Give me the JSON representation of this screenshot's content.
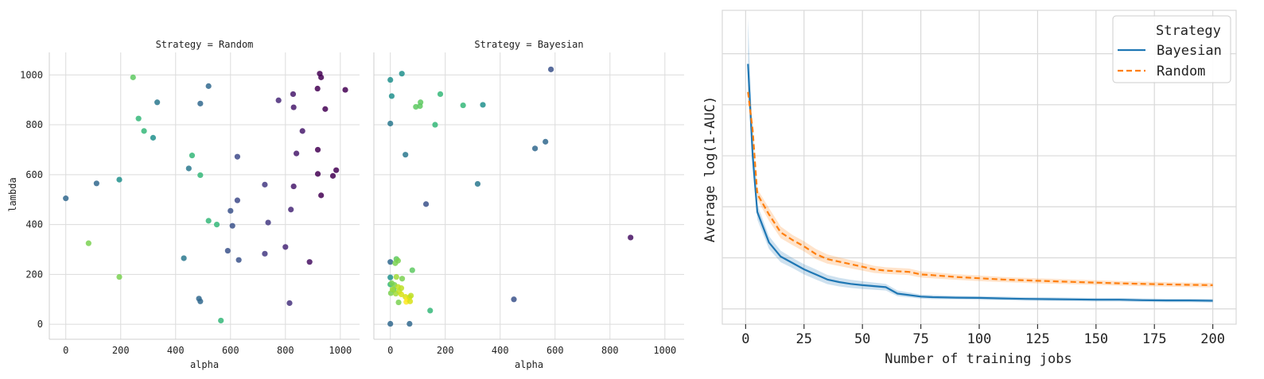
{
  "chart_data": [
    {
      "type": "scatter",
      "title": "Strategy = Random",
      "xlabel": "alpha",
      "ylabel": "lambda",
      "xlim": [
        -60,
        1070
      ],
      "ylim": [
        -60,
        1090
      ],
      "xticks": [
        "0",
        "200",
        "400",
        "600",
        "800",
        "1000"
      ],
      "yticks": [
        "0",
        "200",
        "400",
        "600",
        "800",
        "1000"
      ],
      "colormap": "viridis",
      "points": [
        {
          "x": 0,
          "y": 505,
          "color": "#31688e"
        },
        {
          "x": 112,
          "y": 565,
          "color": "#31688e"
        },
        {
          "x": 195,
          "y": 580,
          "color": "#21908d"
        },
        {
          "x": 83,
          "y": 325,
          "color": "#7ad151"
        },
        {
          "x": 195,
          "y": 190,
          "color": "#7ad151"
        },
        {
          "x": 245,
          "y": 990,
          "color": "#5ec962"
        },
        {
          "x": 265,
          "y": 825,
          "color": "#35b779"
        },
        {
          "x": 285,
          "y": 775,
          "color": "#35b779"
        },
        {
          "x": 318,
          "y": 748,
          "color": "#21908d"
        },
        {
          "x": 333,
          "y": 890,
          "color": "#2a788e"
        },
        {
          "x": 460,
          "y": 677,
          "color": "#35b779"
        },
        {
          "x": 448,
          "y": 625,
          "color": "#2a788e"
        },
        {
          "x": 490,
          "y": 598,
          "color": "#35b779"
        },
        {
          "x": 490,
          "y": 885,
          "color": "#31688e"
        },
        {
          "x": 520,
          "y": 955,
          "color": "#31688e"
        },
        {
          "x": 520,
          "y": 415,
          "color": "#35b779"
        },
        {
          "x": 550,
          "y": 400,
          "color": "#35b779"
        },
        {
          "x": 430,
          "y": 265,
          "color": "#2a788e"
        },
        {
          "x": 485,
          "y": 103,
          "color": "#31688e"
        },
        {
          "x": 490,
          "y": 92,
          "color": "#31688e"
        },
        {
          "x": 565,
          "y": 15,
          "color": "#35b779"
        },
        {
          "x": 590,
          "y": 295,
          "color": "#3b528b"
        },
        {
          "x": 600,
          "y": 455,
          "color": "#3b528b"
        },
        {
          "x": 607,
          "y": 395,
          "color": "#3b528b"
        },
        {
          "x": 625,
          "y": 672,
          "color": "#3e4a89"
        },
        {
          "x": 625,
          "y": 497,
          "color": "#3e4a89"
        },
        {
          "x": 630,
          "y": 258,
          "color": "#3b528b"
        },
        {
          "x": 725,
          "y": 560,
          "color": "#443983"
        },
        {
          "x": 725,
          "y": 283,
          "color": "#443983"
        },
        {
          "x": 737,
          "y": 408,
          "color": "#443983"
        },
        {
          "x": 775,
          "y": 898,
          "color": "#482878"
        },
        {
          "x": 800,
          "y": 310,
          "color": "#482878"
        },
        {
          "x": 815,
          "y": 85,
          "color": "#46327e"
        },
        {
          "x": 820,
          "y": 460,
          "color": "#482878"
        },
        {
          "x": 828,
          "y": 923,
          "color": "#481a6c"
        },
        {
          "x": 830,
          "y": 870,
          "color": "#481a6c"
        },
        {
          "x": 830,
          "y": 553,
          "color": "#481a6c"
        },
        {
          "x": 840,
          "y": 685,
          "color": "#481a6c"
        },
        {
          "x": 862,
          "y": 775,
          "color": "#481a6c"
        },
        {
          "x": 888,
          "y": 250,
          "color": "#471063"
        },
        {
          "x": 917,
          "y": 945,
          "color": "#440154"
        },
        {
          "x": 925,
          "y": 1005,
          "color": "#440154"
        },
        {
          "x": 930,
          "y": 990,
          "color": "#440154"
        },
        {
          "x": 918,
          "y": 700,
          "color": "#440154"
        },
        {
          "x": 918,
          "y": 603,
          "color": "#440154"
        },
        {
          "x": 930,
          "y": 517,
          "color": "#440154"
        },
        {
          "x": 945,
          "y": 863,
          "color": "#440154"
        },
        {
          "x": 973,
          "y": 595,
          "color": "#440154"
        },
        {
          "x": 985,
          "y": 618,
          "color": "#440154"
        },
        {
          "x": 1018,
          "y": 940,
          "color": "#440154"
        }
      ]
    },
    {
      "type": "scatter",
      "title": "Strategy = Bayesian",
      "xlabel": "alpha",
      "ylabel": "",
      "xlim": [
        -60,
        1070
      ],
      "ylim": [
        -60,
        1090
      ],
      "xticks": [
        "0",
        "200",
        "400",
        "600",
        "800",
        "1000"
      ],
      "colormap": "viridis",
      "points": [
        {
          "x": 0,
          "y": 980,
          "color": "#21908d"
        },
        {
          "x": 42,
          "y": 1005,
          "color": "#21908d"
        },
        {
          "x": 5,
          "y": 915,
          "color": "#21908d"
        },
        {
          "x": 0,
          "y": 805,
          "color": "#2a788e"
        },
        {
          "x": 55,
          "y": 680,
          "color": "#2a788e"
        },
        {
          "x": 93,
          "y": 872,
          "color": "#5ec962"
        },
        {
          "x": 108,
          "y": 875,
          "color": "#5ec962"
        },
        {
          "x": 110,
          "y": 890,
          "color": "#5ec962"
        },
        {
          "x": 163,
          "y": 800,
          "color": "#35b779"
        },
        {
          "x": 182,
          "y": 923,
          "color": "#35b779"
        },
        {
          "x": 265,
          "y": 878,
          "color": "#35b779"
        },
        {
          "x": 337,
          "y": 880,
          "color": "#21908d"
        },
        {
          "x": 318,
          "y": 563,
          "color": "#2a788e"
        },
        {
          "x": 527,
          "y": 705,
          "color": "#31688e"
        },
        {
          "x": 565,
          "y": 732,
          "color": "#31688e"
        },
        {
          "x": 585,
          "y": 1022,
          "color": "#3b528b"
        },
        {
          "x": 130,
          "y": 482,
          "color": "#3b528b"
        },
        {
          "x": 875,
          "y": 348,
          "color": "#471063"
        },
        {
          "x": 450,
          "y": 100,
          "color": "#3b528b"
        },
        {
          "x": 145,
          "y": 55,
          "color": "#35b779"
        },
        {
          "x": 70,
          "y": 2,
          "color": "#31688e"
        },
        {
          "x": 0,
          "y": 2,
          "color": "#31688e"
        },
        {
          "x": 0,
          "y": 250,
          "color": "#31688e"
        },
        {
          "x": 22,
          "y": 262,
          "color": "#5ec962"
        },
        {
          "x": 28,
          "y": 255,
          "color": "#7ad151"
        },
        {
          "x": 18,
          "y": 245,
          "color": "#7ad151"
        },
        {
          "x": 0,
          "y": 188,
          "color": "#21908d"
        },
        {
          "x": 22,
          "y": 190,
          "color": "#a0da39"
        },
        {
          "x": 43,
          "y": 183,
          "color": "#7ad151"
        },
        {
          "x": 80,
          "y": 217,
          "color": "#5ec962"
        },
        {
          "x": 0,
          "y": 160,
          "color": "#35b779"
        },
        {
          "x": 5,
          "y": 165,
          "color": "#7ad151"
        },
        {
          "x": 15,
          "y": 158,
          "color": "#7ad151"
        },
        {
          "x": 28,
          "y": 150,
          "color": "#bddf26"
        },
        {
          "x": 40,
          "y": 145,
          "color": "#bddf26"
        },
        {
          "x": 2,
          "y": 125,
          "color": "#7ad151"
        },
        {
          "x": 12,
          "y": 138,
          "color": "#5ec962"
        },
        {
          "x": 20,
          "y": 123,
          "color": "#a0da39"
        },
        {
          "x": 32,
          "y": 132,
          "color": "#bddf26"
        },
        {
          "x": 55,
          "y": 110,
          "color": "#d8e219"
        },
        {
          "x": 62,
          "y": 100,
          "color": "#fde725"
        },
        {
          "x": 70,
          "y": 108,
          "color": "#d8e219"
        },
        {
          "x": 75,
          "y": 115,
          "color": "#bddf26"
        },
        {
          "x": 58,
          "y": 90,
          "color": "#fde725"
        },
        {
          "x": 30,
          "y": 88,
          "color": "#7ad151"
        },
        {
          "x": 72,
          "y": 92,
          "color": "#d8e219"
        },
        {
          "x": 40,
          "y": 120,
          "color": "#d8e219"
        },
        {
          "x": 8,
          "y": 140,
          "color": "#a0da39"
        }
      ]
    },
    {
      "type": "line",
      "title": "",
      "xlabel": "Number of training jobs",
      "ylabel": "Average log(1-AUC)",
      "xlim": [
        -10,
        210
      ],
      "ylim": [
        -0.06,
        1.17
      ],
      "xticks": [
        0,
        25,
        50,
        75,
        100,
        125,
        150,
        175,
        200
      ],
      "ygrid": [
        1.0,
        0.8,
        0.6,
        0.4,
        0.2,
        0.0
      ],
      "legend": {
        "title": "Strategy",
        "position": "top-right"
      },
      "series": [
        {
          "name": "Bayesian",
          "color": "#1f77b4",
          "dash": "solid",
          "x": [
            1,
            3,
            5,
            10,
            15,
            20,
            25,
            30,
            35,
            40,
            45,
            50,
            60,
            65,
            75,
            80,
            90,
            100,
            110,
            120,
            130,
            140,
            150,
            160,
            170,
            180,
            190,
            200
          ],
          "y": [
            0.96,
            0.6,
            0.38,
            0.26,
            0.205,
            0.18,
            0.155,
            0.135,
            0.115,
            0.105,
            0.098,
            0.093,
            0.085,
            0.06,
            0.048,
            0.046,
            0.044,
            0.043,
            0.041,
            0.039,
            0.038,
            0.037,
            0.036,
            0.036,
            0.034,
            0.033,
            0.033,
            0.032
          ],
          "lower": [
            0.88,
            0.55,
            0.35,
            0.235,
            0.183,
            0.16,
            0.135,
            0.115,
            0.097,
            0.088,
            0.082,
            0.078,
            0.072,
            0.05,
            0.04,
            0.038,
            0.037,
            0.036,
            0.034,
            0.032,
            0.031,
            0.03,
            0.029,
            0.029,
            0.027,
            0.026,
            0.026,
            0.025
          ],
          "upper": [
            1.14,
            0.66,
            0.41,
            0.285,
            0.228,
            0.2,
            0.175,
            0.155,
            0.133,
            0.122,
            0.114,
            0.108,
            0.098,
            0.072,
            0.056,
            0.054,
            0.051,
            0.05,
            0.048,
            0.046,
            0.045,
            0.044,
            0.043,
            0.043,
            0.041,
            0.04,
            0.04,
            0.039
          ]
        },
        {
          "name": "Random",
          "color": "#ff7f0e",
          "dash": "dashed",
          "x": [
            1,
            3,
            5,
            10,
            15,
            20,
            25,
            30,
            35,
            40,
            45,
            50,
            55,
            60,
            70,
            75,
            80,
            90,
            100,
            110,
            125,
            150,
            160,
            175,
            190,
            200
          ],
          "y": [
            0.85,
            0.7,
            0.45,
            0.37,
            0.3,
            0.27,
            0.245,
            0.215,
            0.195,
            0.185,
            0.175,
            0.165,
            0.155,
            0.15,
            0.145,
            0.135,
            0.132,
            0.125,
            0.12,
            0.115,
            0.11,
            0.103,
            0.1,
            0.097,
            0.094,
            0.093
          ],
          "lower": [
            0.82,
            0.67,
            0.43,
            0.345,
            0.277,
            0.25,
            0.225,
            0.195,
            0.177,
            0.168,
            0.159,
            0.15,
            0.141,
            0.137,
            0.132,
            0.123,
            0.12,
            0.114,
            0.109,
            0.105,
            0.1,
            0.094,
            0.091,
            0.088,
            0.085,
            0.084
          ],
          "upper": [
            0.88,
            0.73,
            0.47,
            0.395,
            0.323,
            0.29,
            0.265,
            0.235,
            0.213,
            0.202,
            0.191,
            0.18,
            0.169,
            0.163,
            0.158,
            0.147,
            0.144,
            0.136,
            0.131,
            0.125,
            0.12,
            0.112,
            0.109,
            0.106,
            0.103,
            0.102
          ]
        }
      ]
    }
  ]
}
